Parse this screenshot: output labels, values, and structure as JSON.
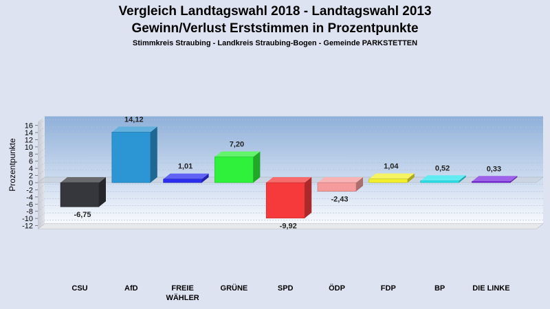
{
  "chart_data": {
    "type": "bar",
    "title": "Vergleich Landtagswahl 2018 - Landtagswahl 2013",
    "subtitle_line": "Gewinn/Verlust Erststimmen in Prozentpunkte",
    "subtitle": "Stimmkreis Straubing - Landkreis Straubing-Bogen - Gemeinde PARKSTETTEN",
    "ylabel": "Prozentpunkte",
    "xlabel": "",
    "ylim": [
      -13,
      17
    ],
    "yticks": [
      "16",
      "14",
      "12",
      "10",
      "8",
      "6",
      "4",
      "2",
      "0",
      "-2",
      "-4",
      "-6",
      "-8",
      "-10",
      "-12"
    ],
    "categories": [
      "CSU",
      "AfD",
      "FREIE WÄHLER",
      "GRÜNE",
      "SPD",
      "ÖDP",
      "FDP",
      "BP",
      "DIE LINKE"
    ],
    "category_lines": [
      [
        "CSU"
      ],
      [
        "AfD"
      ],
      [
        "FREIE",
        "WÄHLER"
      ],
      [
        "GRÜNE"
      ],
      [
        "SPD"
      ],
      [
        "ÖDP"
      ],
      [
        "FDP"
      ],
      [
        "BP"
      ],
      [
        "DIE LINKE"
      ]
    ],
    "values": [
      -6.75,
      14.12,
      1.01,
      7.2,
      -9.92,
      -2.43,
      1.04,
      0.52,
      0.33
    ],
    "value_labels": [
      "-6,75",
      "14,12",
      "1,01",
      "7,20",
      "-9,92",
      "-2,43",
      "1,04",
      "0,52",
      "0,33"
    ],
    "colors": [
      "#35373c",
      "#2c95d3",
      "#2c2ff0",
      "#2ff03b",
      "#f63a3c",
      "#f69b9c",
      "#f2ef2c",
      "#2ce6ee",
      "#7d2de0"
    ],
    "grid": true,
    "legend": "none"
  }
}
